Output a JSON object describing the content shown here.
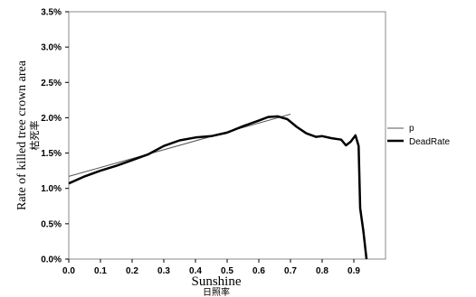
{
  "chart_data": {
    "type": "line",
    "title": "",
    "xlabel": "Sunshine",
    "xlabel_jp": "日照率",
    "ylabel": "Rate of killed tree crown area",
    "ylabel_jp": "枯死率",
    "xlim": [
      0,
      1.0
    ],
    "ylim": [
      0,
      0.035
    ],
    "xticks": [
      "0.0",
      "0.1",
      "0.2",
      "0.3",
      "0.4",
      "0.5",
      "0.6",
      "0.7",
      "0.8",
      "0.9"
    ],
    "xtick_values": [
      0,
      0.1,
      0.2,
      0.3,
      0.4,
      0.5,
      0.6,
      0.7,
      0.8,
      0.9
    ],
    "yticks": [
      "0.0%",
      "0.5%",
      "1.0%",
      "1.5%",
      "2.0%",
      "2.5%",
      "3.0%",
      "3.5%"
    ],
    "ytick_values": [
      0,
      0.005,
      0.01,
      0.015,
      0.02,
      0.025,
      0.03,
      0.035
    ],
    "grid": false,
    "legend_position": "right",
    "series": [
      {
        "name": "p",
        "color": "#555555",
        "style": "thin",
        "x": [
          0.0,
          0.7
        ],
        "y": [
          0.0117,
          0.0205
        ]
      },
      {
        "name": "DeadRate",
        "color": "#000000",
        "style": "thick",
        "x": [
          0.0,
          0.05,
          0.1,
          0.15,
          0.2,
          0.25,
          0.3,
          0.35,
          0.4,
          0.45,
          0.5,
          0.55,
          0.6,
          0.63,
          0.66,
          0.69,
          0.72,
          0.75,
          0.78,
          0.8,
          0.83,
          0.86,
          0.875,
          0.89,
          0.905,
          0.915,
          0.92,
          0.93,
          0.94
        ],
        "y": [
          0.0107,
          0.0117,
          0.0125,
          0.0132,
          0.014,
          0.0148,
          0.016,
          0.0168,
          0.0172,
          0.0174,
          0.0179,
          0.0188,
          0.0196,
          0.0201,
          0.0202,
          0.0198,
          0.0187,
          0.0178,
          0.0173,
          0.0174,
          0.0171,
          0.0169,
          0.0161,
          0.0166,
          0.0175,
          0.016,
          0.0072,
          0.004,
          0.0
        ]
      }
    ]
  }
}
